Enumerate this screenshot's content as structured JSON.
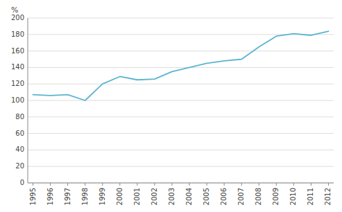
{
  "chart_data": {
    "type": "line",
    "y_label": "%",
    "x": [
      1995,
      1996,
      1997,
      1998,
      1999,
      2000,
      2001,
      2002,
      2003,
      2004,
      2005,
      2006,
      2007,
      2008,
      2009,
      2010,
      2011,
      2012
    ],
    "values": [
      107,
      106,
      107,
      100,
      120,
      129,
      125,
      126,
      135,
      140,
      145,
      148,
      150,
      165,
      178,
      181,
      179,
      184
    ],
    "color": "#5ab4d0",
    "xlim": [
      1994.7,
      2012.3
    ],
    "xticks": [
      1995,
      1996,
      1997,
      1998,
      1999,
      2000,
      2001,
      2002,
      2003,
      2004,
      2005,
      2006,
      2007,
      2008,
      2009,
      2010,
      2011,
      2012
    ],
    "ylim": [
      0,
      200
    ],
    "yticks": [
      0,
      20,
      40,
      60,
      80,
      100,
      120,
      140,
      160,
      180,
      200
    ],
    "grid": true
  }
}
